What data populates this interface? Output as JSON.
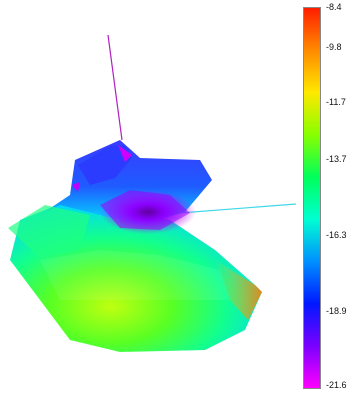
{
  "colorbar": {
    "ticks": [
      "-8.4",
      "-9.8",
      "-11.7",
      "-13.7",
      "-16.3",
      "-18.9",
      "-21.6"
    ],
    "colors": [
      "#ff1e00",
      "#ff8a00",
      "#ffe800",
      "#88ff00",
      "#00ff5a",
      "#00ffd2",
      "#0090ff",
      "#0018ff",
      "#7a00ff",
      "#ff00ff"
    ]
  },
  "scene": {
    "axis_colors": {
      "vertical": "#b020c0",
      "horizontal": "#40d8e8"
    }
  }
}
